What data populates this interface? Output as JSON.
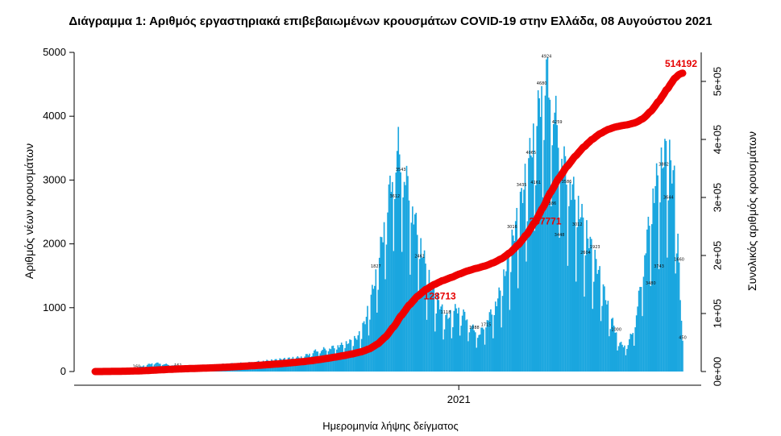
{
  "chart_data": {
    "type": "bar",
    "title": "Διάγραμμα 1: Αριθμός εργαστηριακά επιβεβαιωμένων κρουσμάτων COVID-19 στην Ελλάδα, 08 Αυγούστου 2021",
    "xlabel": "Ημερομηνία λήψης δείγματος",
    "ylabel": "Αριθμός νέων κρουσμάτων",
    "ylabel_right": "Συνολικός αριθμός κρουσμάτων",
    "ylim": [
      0,
      5000
    ],
    "ylim_right": [
      0,
      550000
    ],
    "yticks": [
      "0",
      "1000",
      "2000",
      "3000",
      "4000",
      "5000"
    ],
    "yticks_right": [
      "0e+00",
      "1e+05",
      "2e+05",
      "3e+05",
      "4e+05",
      "5e+05"
    ],
    "xticks": [
      {
        "label": "2021",
        "index": 307
      }
    ],
    "bar_color": "#1aa6df",
    "line_color": "#ee0000",
    "anchors": [
      [
        0,
        5
      ],
      [
        15,
        30
      ],
      [
        35,
        60
      ],
      [
        50,
        140
      ],
      [
        70,
        90
      ],
      [
        90,
        70
      ],
      [
        110,
        120
      ],
      [
        130,
        140
      ],
      [
        160,
        200
      ],
      [
        175,
        230
      ],
      [
        185,
        320
      ],
      [
        192,
        350
      ],
      [
        200,
        380
      ],
      [
        208,
        420
      ],
      [
        215,
        470
      ],
      [
        222,
        550
      ],
      [
        228,
        800
      ],
      [
        233,
        1180
      ],
      [
        238,
        1600
      ],
      [
        243,
        2200
      ],
      [
        248,
        2800
      ],
      [
        253,
        3300
      ],
      [
        256,
        3550
      ],
      [
        260,
        3200
      ],
      [
        265,
        2900
      ],
      [
        270,
        2400
      ],
      [
        275,
        2000
      ],
      [
        280,
        1600
      ],
      [
        285,
        1300
      ],
      [
        290,
        1100
      ],
      [
        296,
        850
      ],
      [
        300,
        900
      ],
      [
        305,
        1000
      ],
      [
        312,
        900
      ],
      [
        318,
        700
      ],
      [
        325,
        600
      ],
      [
        330,
        800
      ],
      [
        335,
        950
      ],
      [
        340,
        1150
      ],
      [
        345,
        1500
      ],
      [
        350,
        1900
      ],
      [
        355,
        2300
      ],
      [
        360,
        2750
      ],
      [
        365,
        3200
      ],
      [
        370,
        3700
      ],
      [
        375,
        4200
      ],
      [
        378,
        4600
      ],
      [
        381,
        4700
      ],
      [
        385,
        4400
      ],
      [
        390,
        3900
      ],
      [
        395,
        3400
      ],
      [
        400,
        3000
      ],
      [
        405,
        2800
      ],
      [
        410,
        2500
      ],
      [
        415,
        2200
      ],
      [
        420,
        1900
      ],
      [
        425,
        1600
      ],
      [
        430,
        1250
      ],
      [
        435,
        900
      ],
      [
        440,
        600
      ],
      [
        445,
        400
      ],
      [
        450,
        450
      ],
      [
        455,
        700
      ],
      [
        460,
        1300
      ],
      [
        465,
        2000
      ],
      [
        470,
        2700
      ],
      [
        475,
        3100
      ],
      [
        480,
        3400
      ],
      [
        483,
        3500
      ],
      [
        486,
        3300
      ],
      [
        490,
        2900
      ],
      [
        494,
        1200
      ],
      [
        496,
        450
      ]
    ],
    "cumulative_annotations": [
      {
        "label": "128713",
        "index": 291,
        "value": 128713
      },
      {
        "label": "257771",
        "index": 380,
        "value": 257771
      },
      {
        "label": "514192",
        "index": 496,
        "value": 514192
      }
    ],
    "bar_labels": [
      {
        "label": "160",
        "index": 35
      },
      {
        "label": "161",
        "index": 70
      },
      {
        "label": "3612",
        "index": 253
      },
      {
        "label": "3543",
        "index": 258
      },
      {
        "label": "2461",
        "index": 274
      },
      {
        "label": "1827",
        "index": 237
      },
      {
        "label": "1715",
        "index": 330
      },
      {
        "label": "3016",
        "index": 352
      },
      {
        "label": "3435",
        "index": 360
      },
      {
        "label": "4065",
        "index": 368
      },
      {
        "label": "4161",
        "index": 372
      },
      {
        "label": "4680",
        "index": 377
      },
      {
        "label": "4924",
        "index": 381
      },
      {
        "label": "4386",
        "index": 385
      },
      {
        "label": "4259",
        "index": 390
      },
      {
        "label": "3586",
        "index": 398
      },
      {
        "label": "3448",
        "index": 392
      },
      {
        "label": "3012",
        "index": 407
      },
      {
        "label": "2604",
        "index": 414
      },
      {
        "label": "1923",
        "index": 422
      },
      {
        "label": "3480",
        "index": 469
      },
      {
        "label": "3743",
        "index": 476
      },
      {
        "label": "3802",
        "index": 480
      },
      {
        "label": "3644",
        "index": 484
      },
      {
        "label": "1660",
        "index": 493
      },
      {
        "label": "450",
        "index": 496
      },
      {
        "label": "1000",
        "index": 440
      },
      {
        "label": "1088",
        "index": 320
      },
      {
        "label": "1118",
        "index": 296
      }
    ]
  }
}
